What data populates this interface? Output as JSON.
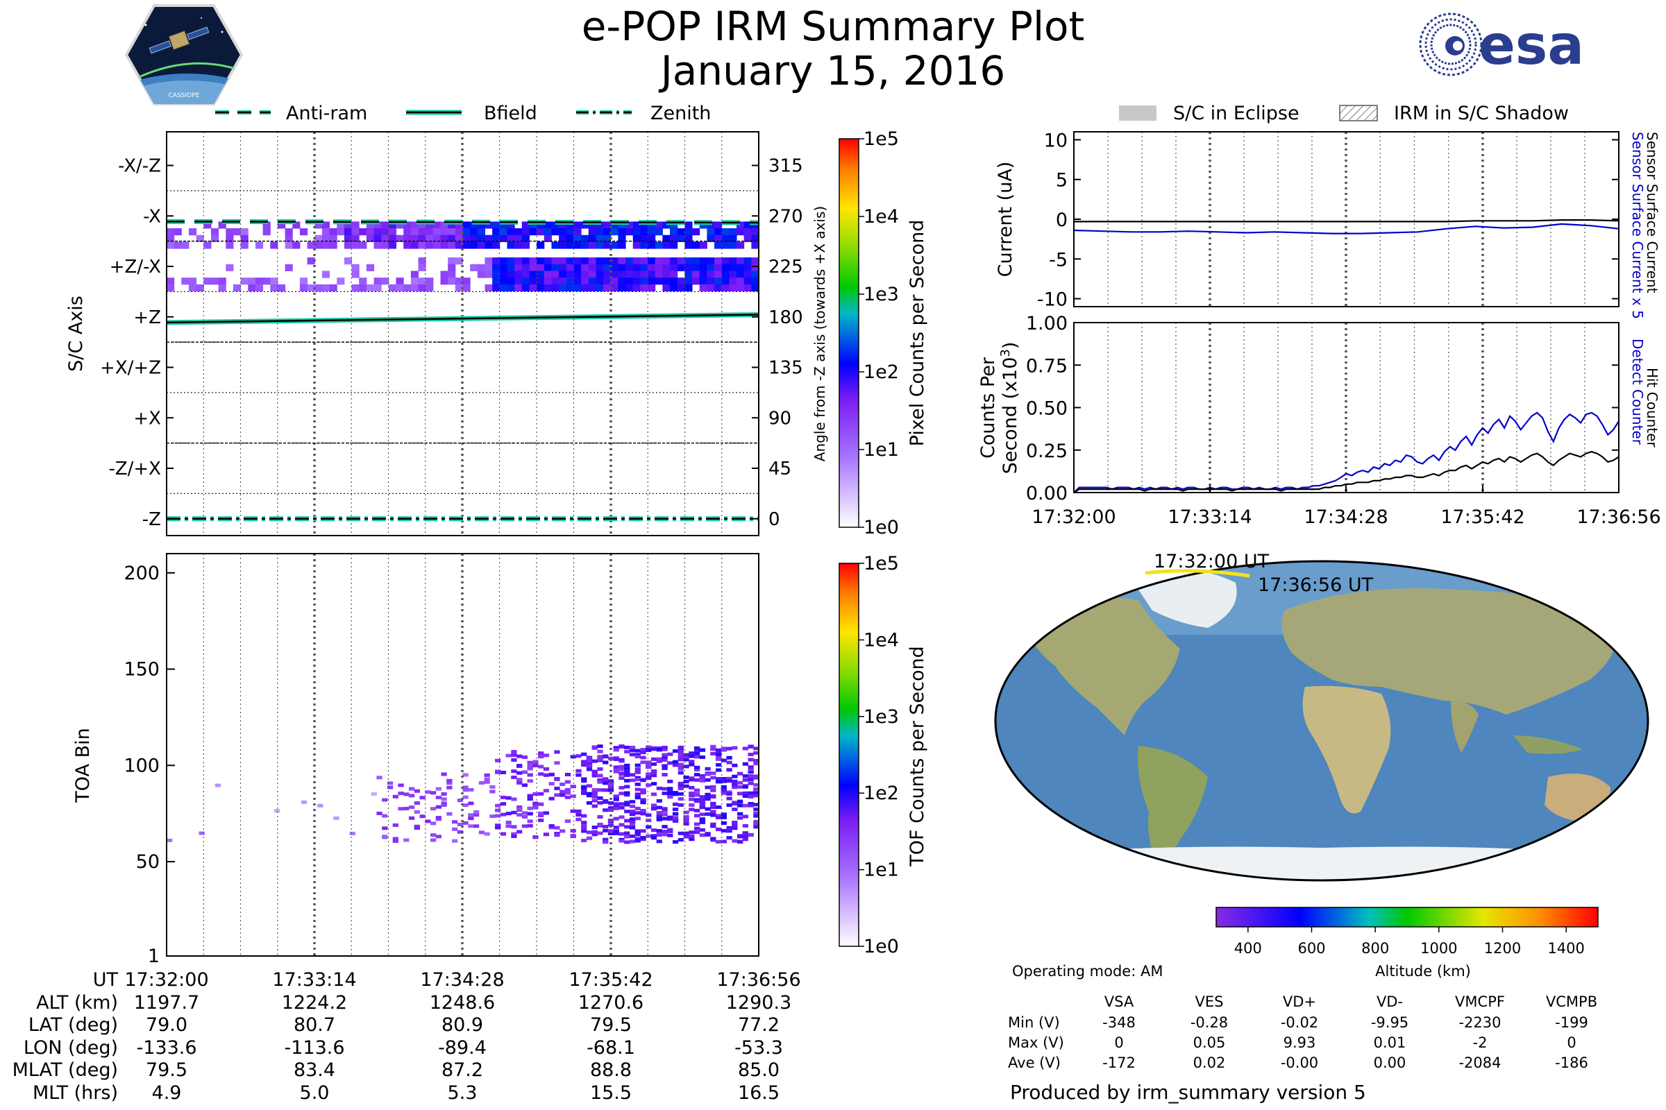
{
  "header": {
    "title_line1": "e-POP IRM Summary Plot",
    "title_line2": "January 15, 2016",
    "logo_right_text": "esa",
    "logo_left_text": "CASSIOPE"
  },
  "legend_top_left": [
    {
      "label": "Anti-ram",
      "style": "dashed"
    },
    {
      "label": "Bfield",
      "style": "solid"
    },
    {
      "label": "Zenith",
      "style": "dashdot"
    }
  ],
  "legend_top_right": [
    {
      "label": "S/C in Eclipse",
      "style": "grey-fill"
    },
    {
      "label": "IRM in S/C Shadow",
      "style": "hatch"
    }
  ],
  "time_ticks": [
    "17:32:00",
    "17:33:14",
    "17:34:28",
    "17:35:42",
    "17:36:56"
  ],
  "ephemeris": {
    "rows": [
      {
        "label": "UT",
        "values": [
          "17:32:00",
          "17:33:14",
          "17:34:28",
          "17:35:42",
          "17:36:56"
        ]
      },
      {
        "label": "ALT (km)",
        "values": [
          "1197.7",
          "1224.2",
          "1248.6",
          "1270.6",
          "1290.3"
        ]
      },
      {
        "label": "LAT (deg)",
        "values": [
          "79.0",
          "80.7",
          "80.9",
          "79.5",
          "77.2"
        ]
      },
      {
        "label": "LON (deg)",
        "values": [
          "-133.6",
          "-113.6",
          "-89.4",
          "-68.1",
          "-53.3"
        ]
      },
      {
        "label": "MLAT (deg)",
        "values": [
          "79.5",
          "83.4",
          "87.2",
          "88.8",
          "85.0"
        ]
      },
      {
        "label": "MLT (hrs)",
        "values": [
          "4.9",
          "5.0",
          "5.3",
          "15.5",
          "16.5"
        ]
      }
    ]
  },
  "voltage_table": {
    "operating_mode": "Operating mode: AM",
    "columns": [
      "VSA",
      "VES",
      "VD+",
      "VD-",
      "VMCPF",
      "VCMPB"
    ],
    "rows": [
      {
        "label": "Min (V)",
        "values": [
          "-348",
          "-0.28",
          "-0.02",
          "-9.95",
          "-2230",
          "-199"
        ]
      },
      {
        "label": "Max (V)",
        "values": [
          "0",
          "0.05",
          "9.93",
          "0.01",
          "-2",
          "0"
        ]
      },
      {
        "label": "Ave (V)",
        "values": [
          "-172",
          "0.02",
          "-0.00",
          "0.00",
          "-2084",
          "-186"
        ]
      }
    ]
  },
  "footer": "Produced by irm_summary version 5",
  "chart_data": [
    {
      "id": "pixel-panel",
      "type": "heatmap",
      "ylabel": "S/C Axis",
      "ylabel_right": "Angle from -Z axis (towards +X axis)",
      "yticklabels_left": [
        "-X/-Z",
        "-X",
        "+Z/-X",
        "+Z",
        "+X/+Z",
        "+X",
        "-Z/+X",
        "-Z"
      ],
      "yticklabels_right": [
        "315",
        "270",
        "225",
        "180",
        "135",
        "90",
        "45",
        "0"
      ],
      "ylim": [
        -15,
        345
      ],
      "colorbar": {
        "label": "Pixel Counts per Second",
        "ticks": [
          "1e0",
          "1e1",
          "1e2",
          "1e3",
          "1e4",
          "1e5"
        ],
        "scale": "log"
      },
      "lines": [
        {
          "name": "Anti-ram",
          "style": "dashed",
          "angle_start": 265,
          "angle_end": 264
        },
        {
          "name": "Bfield",
          "style": "solid",
          "angle_start": 175,
          "angle_end": 182
        },
        {
          "name": "Zenith",
          "style": "dashdot",
          "angle_start": 0,
          "angle_end": 0
        }
      ]
    },
    {
      "id": "toa-panel",
      "type": "heatmap",
      "ylabel": "TOA Bin",
      "yticks": [
        "1",
        "50",
        "100",
        "150",
        "200"
      ],
      "ylim": [
        1,
        210
      ],
      "colorbar": {
        "label": "TOF Counts per Second",
        "ticks": [
          "1e0",
          "1e1",
          "1e2",
          "1e3",
          "1e4",
          "1e5"
        ],
        "scale": "log"
      }
    },
    {
      "id": "current-panel",
      "type": "line",
      "ylabel": "Current (uA)",
      "ylabel_right_1": "Sensor Surface Current x 5",
      "ylabel_right_2": "Sensor Surface Current",
      "yticks": [
        "10",
        "5",
        "0",
        "-5",
        "-10"
      ],
      "ylim": [
        -11,
        11
      ],
      "series": [
        {
          "name": "Sensor Surface Current x 5",
          "color": "#0000cc",
          "values": [
            -1.4,
            -1.5,
            -1.6,
            -1.6,
            -1.5,
            -1.6,
            -1.7,
            -1.6,
            -1.7,
            -1.8,
            -1.8,
            -1.7,
            -1.6,
            -1.2,
            -0.9,
            -1.1,
            -1.0,
            -0.6,
            -0.8,
            -1.2
          ]
        },
        {
          "name": "Sensor Surface Current",
          "color": "#000000",
          "values": [
            -0.3,
            -0.3,
            -0.3,
            -0.3,
            -0.3,
            -0.3,
            -0.3,
            -0.3,
            -0.3,
            -0.3,
            -0.3,
            -0.3,
            -0.3,
            -0.3,
            -0.2,
            -0.2,
            -0.2,
            -0.1,
            -0.1,
            -0.2
          ]
        }
      ]
    },
    {
      "id": "counts-panel",
      "type": "line",
      "ylabel_1": "Counts Per",
      "ylabel_2": "Second (x10",
      "ylabel_sup": "3",
      "ylabel_3": ")",
      "ylabel_right_1": "Detect Counter",
      "ylabel_right_2": "Hit Counter",
      "yticks": [
        "1.00",
        "0.75",
        "0.50",
        "0.25",
        "0.00"
      ],
      "ylim": [
        0,
        1
      ],
      "series": [
        {
          "name": "Detect Counter",
          "color": "#0000cc",
          "values": [
            0.0,
            0.03,
            0.03,
            0.03,
            0.03,
            0.03,
            0.03,
            0.02,
            0.03,
            0.03,
            0.03,
            0.02,
            0.03,
            0.02,
            0.03,
            0.02,
            0.03,
            0.03,
            0.02,
            0.03,
            0.02,
            0.03,
            0.03,
            0.02,
            0.02,
            0.03,
            0.02,
            0.03,
            0.03,
            0.02,
            0.02,
            0.03,
            0.03,
            0.02,
            0.03,
            0.02,
            0.02,
            0.03,
            0.02,
            0.03,
            0.03,
            0.02,
            0.03,
            0.03,
            0.04,
            0.04,
            0.05,
            0.06,
            0.07,
            0.09,
            0.11,
            0.1,
            0.12,
            0.13,
            0.12,
            0.15,
            0.14,
            0.17,
            0.16,
            0.19,
            0.18,
            0.22,
            0.21,
            0.18,
            0.17,
            0.2,
            0.22,
            0.19,
            0.24,
            0.27,
            0.25,
            0.3,
            0.33,
            0.28,
            0.34,
            0.38,
            0.35,
            0.4,
            0.43,
            0.38,
            0.45,
            0.42,
            0.37,
            0.41,
            0.45,
            0.47,
            0.44,
            0.36,
            0.3,
            0.38,
            0.43,
            0.46,
            0.44,
            0.41,
            0.46,
            0.47,
            0.45,
            0.4,
            0.34,
            0.37,
            0.42
          ]
        },
        {
          "name": "Hit Counter",
          "color": "#000000",
          "values": [
            0.0,
            0.02,
            0.02,
            0.02,
            0.02,
            0.02,
            0.02,
            0.02,
            0.02,
            0.02,
            0.02,
            0.02,
            0.02,
            0.01,
            0.02,
            0.02,
            0.02,
            0.02,
            0.02,
            0.02,
            0.01,
            0.02,
            0.02,
            0.02,
            0.02,
            0.02,
            0.02,
            0.02,
            0.02,
            0.01,
            0.02,
            0.02,
            0.02,
            0.02,
            0.02,
            0.02,
            0.02,
            0.02,
            0.01,
            0.02,
            0.02,
            0.02,
            0.02,
            0.02,
            0.02,
            0.02,
            0.03,
            0.03,
            0.04,
            0.04,
            0.05,
            0.05,
            0.06,
            0.06,
            0.06,
            0.07,
            0.07,
            0.08,
            0.08,
            0.09,
            0.09,
            0.1,
            0.1,
            0.09,
            0.09,
            0.1,
            0.11,
            0.1,
            0.12,
            0.13,
            0.13,
            0.15,
            0.16,
            0.14,
            0.16,
            0.18,
            0.17,
            0.19,
            0.2,
            0.18,
            0.21,
            0.2,
            0.18,
            0.2,
            0.22,
            0.23,
            0.21,
            0.18,
            0.16,
            0.19,
            0.21,
            0.23,
            0.22,
            0.21,
            0.23,
            0.24,
            0.23,
            0.21,
            0.18,
            0.19,
            0.21
          ]
        }
      ]
    },
    {
      "id": "orbit-map",
      "type": "map",
      "start_label": "17:32:00 UT",
      "end_label": "17:36:56 UT",
      "colorbar": {
        "label": "Altitude (km)",
        "ticks": [
          "400",
          "600",
          "800",
          "1000",
          "1200",
          "1400"
        ],
        "range": [
          300,
          1500
        ]
      }
    }
  ]
}
